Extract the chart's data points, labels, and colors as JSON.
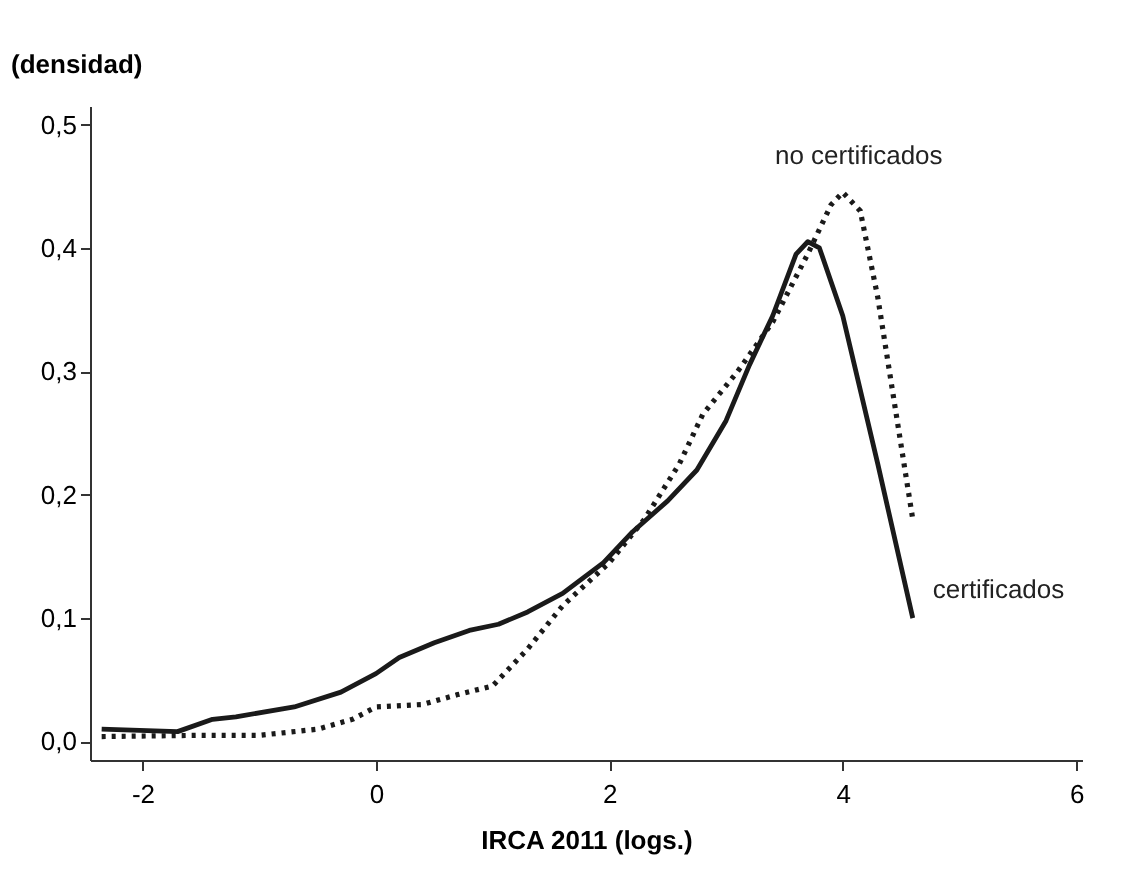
{
  "chart_data": {
    "type": "line",
    "xlabel": "IRCA 2011 (logs.)",
    "ylabel": "(densidad)",
    "xlim": [
      -2.45,
      6.05
    ],
    "xticks": [
      -2,
      0,
      2,
      4,
      6
    ],
    "ylim": [
      -0.015,
      0.515
    ],
    "yticks": [
      {
        "value": 0,
        "label": "0,0"
      },
      {
        "value": 0.1,
        "label": "0,1"
      },
      {
        "value": 0.2,
        "label": "0,2"
      },
      {
        "value": 0.3,
        "label": "0,3"
      },
      {
        "value": 0.4,
        "label": "0,4"
      },
      {
        "value": 0.5,
        "label": "0,5"
      }
    ],
    "grid": false,
    "marker": "none",
    "series": [
      {
        "name": "certificados",
        "color": "#1a1a1a",
        "line_style": "solid",
        "x": [
          -2.35,
          -1.7,
          -1.4,
          -1.2,
          -0.7,
          -0.3,
          0,
          0.2,
          0.5,
          0.8,
          1.05,
          1.3,
          1.6,
          1.95,
          2.2,
          2.5,
          2.75,
          3,
          3.2,
          3.4,
          3.6,
          3.7,
          3.8,
          4.0,
          4.3,
          4.6
        ],
        "values": [
          0.01,
          0.008,
          0.018,
          0.02,
          0.028,
          0.04,
          0.055,
          0.068,
          0.08,
          0.09,
          0.095,
          0.105,
          0.12,
          0.145,
          0.17,
          0.195,
          0.22,
          0.26,
          0.305,
          0.345,
          0.395,
          0.405,
          0.4,
          0.345,
          0.225,
          0.1
        ]
      },
      {
        "name": "no certificados",
        "color": "#1a1a1a",
        "line_style": "dotted",
        "x": [
          -2.35,
          -1.5,
          -1.0,
          -0.5,
          -0.2,
          0,
          0.4,
          0.7,
          1.0,
          1.3,
          1.6,
          2.0,
          2.3,
          2.6,
          2.8,
          3.1,
          3.4,
          3.7,
          3.9,
          4.0,
          4.15,
          4.3,
          4.5,
          4.6
        ],
        "values": [
          0.004,
          0.005,
          0.005,
          0.01,
          0.018,
          0.028,
          0.03,
          0.038,
          0.045,
          0.075,
          0.11,
          0.145,
          0.18,
          0.225,
          0.265,
          0.3,
          0.34,
          0.395,
          0.435,
          0.445,
          0.43,
          0.36,
          0.24,
          0.18
        ]
      }
    ]
  }
}
